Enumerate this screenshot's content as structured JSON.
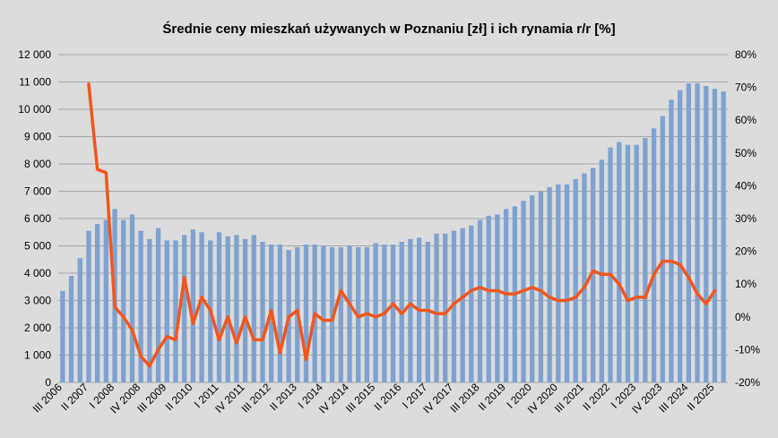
{
  "chart_data": {
    "type": "bar",
    "title": "Średnie ceny mieszkań używanych w Poznaniu [zł] i ich rynamia r/r [%]",
    "xlabel": "",
    "ylabel": "",
    "y2label": "",
    "grid": true,
    "legend": "none",
    "ylim": [
      0,
      12000
    ],
    "y2lim": [
      -20,
      80
    ],
    "y_ticks": [
      "0",
      "1 000",
      "2 000",
      "3 000",
      "4 000",
      "5 000",
      "6 000",
      "7 000",
      "8 000",
      "9 000",
      "10 000",
      "11 000",
      "12 000"
    ],
    "y2_ticks": [
      "-20%",
      "-10%",
      "0%",
      "10%",
      "20%",
      "30%",
      "40%",
      "50%",
      "60%",
      "70%",
      "80%"
    ],
    "x_tick_labels": [
      "III 2006",
      "II 2007",
      "I 2008",
      "IV 2008",
      "III 2009",
      "II 2010",
      "I 2011",
      "IV 2011",
      "III 2012",
      "II 2013",
      "I 2014",
      "IV 2014",
      "III 2015",
      "II 2016",
      "I 2017",
      "IV 2017",
      "III 2018",
      "II 2019",
      "I 2020",
      "IV 2020",
      "III 2021",
      "II 2022",
      "I 2023",
      "IV 2023",
      "III 2024",
      "II 2025"
    ],
    "categories": [
      "III 2006",
      "IV 2006",
      "I 2007",
      "II 2007",
      "III 2007",
      "IV 2007",
      "I 2008",
      "II 2008",
      "III 2008",
      "IV 2008",
      "I 2009",
      "II 2009",
      "III 2009",
      "IV 2009",
      "I 2010",
      "II 2010",
      "III 2010",
      "IV 2010",
      "I 2011",
      "II 2011",
      "III 2011",
      "IV 2011",
      "I 2012",
      "II 2012",
      "III 2012",
      "IV 2012",
      "I 2013",
      "II 2013",
      "III 2013",
      "IV 2013",
      "I 2014",
      "II 2014",
      "III 2014",
      "IV 2014",
      "I 2015",
      "II 2015",
      "III 2015",
      "IV 2015",
      "I 2016",
      "II 2016",
      "III 2016",
      "IV 2016",
      "I 2017",
      "II 2017",
      "III 2017",
      "IV 2017",
      "I 2018",
      "II 2018",
      "III 2018",
      "IV 2018",
      "I 2019",
      "II 2019",
      "III 2019",
      "IV 2019",
      "I 2020",
      "II 2020",
      "III 2020",
      "IV 2020",
      "I 2021",
      "II 2021",
      "III 2021",
      "IV 2021",
      "I 2022",
      "II 2022",
      "III 2022",
      "IV 2022",
      "I 2023",
      "II 2023",
      "III 2023",
      "IV 2023",
      "I 2024",
      "II 2024",
      "III 2024",
      "IV 2024",
      "I 2025",
      "II 2025",
      "III 2025"
    ],
    "series": [
      {
        "axis": "left",
        "kind": "bar",
        "color": "#7ea3d2",
        "values": [
          3350,
          3900,
          4550,
          5550,
          5800,
          5950,
          6350,
          5950,
          6150,
          5550,
          5250,
          5650,
          5200,
          5200,
          5400,
          5600,
          5500,
          5200,
          5500,
          5350,
          5400,
          5250,
          5400,
          5150,
          5050,
          5050,
          4850,
          4950,
          5050,
          5050,
          5000,
          4950,
          4950,
          5000,
          4950,
          4950,
          5100,
          5050,
          5050,
          5150,
          5250,
          5300,
          5150,
          5450,
          5450,
          5550,
          5650,
          5750,
          5950,
          6100,
          6150,
          6350,
          6450,
          6650,
          6850,
          7000,
          7150,
          7250,
          7250,
          7450,
          7650,
          7850,
          8150,
          8600,
          8800,
          8700,
          8700,
          8950,
          9300,
          9750,
          10350,
          10700,
          10950,
          10950,
          10850,
          10750,
          10650
        ]
      },
      {
        "axis": "right",
        "kind": "line",
        "color": "#f2561d",
        "values": [
          null,
          null,
          null,
          71,
          45,
          44,
          3,
          0,
          -4,
          -12,
          -15,
          -10,
          -6,
          -7,
          12,
          -2,
          6,
          2,
          -7,
          0,
          -8,
          0,
          -7,
          -7,
          2,
          -11,
          0,
          2,
          -13,
          1,
          -1,
          -1,
          8,
          4,
          0,
          1,
          0,
          1,
          4,
          1,
          4,
          2,
          2,
          1,
          1,
          4,
          6,
          8,
          9,
          8,
          8,
          7,
          7,
          8,
          9,
          8,
          6,
          5,
          5,
          6,
          9,
          14,
          13,
          13,
          10,
          5,
          6,
          6,
          13,
          17,
          17,
          16,
          12,
          7,
          4,
          8,
          null
        ]
      }
    ]
  }
}
